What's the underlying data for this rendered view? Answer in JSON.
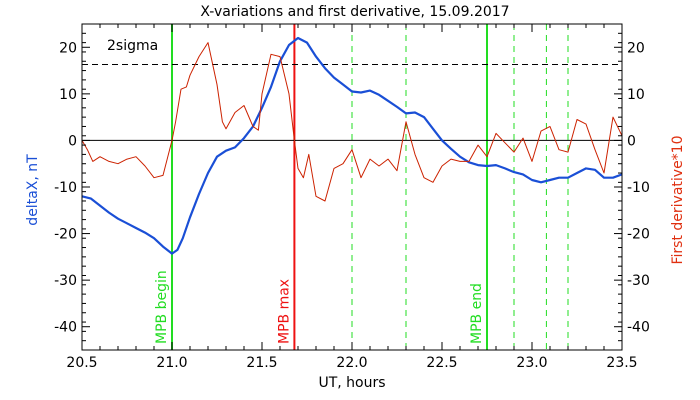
{
  "chart_data": {
    "type": "line",
    "title": "X-variations and first derivative, 15.09.2017",
    "xlabel": "UT, hours",
    "ylabel_left": "deltaX, nT",
    "ylabel_right": "First derivative*10",
    "xlim": [
      20.5,
      23.5
    ],
    "ylim": [
      -45,
      25
    ],
    "x_ticks": [
      20.5,
      21.0,
      21.5,
      22.0,
      22.5,
      23.0,
      23.5
    ],
    "x_tick_labels": [
      "20.5",
      "21.0",
      "21.5",
      "22.0",
      "22.5",
      "23.0",
      "23.5"
    ],
    "y_ticks": [
      -40,
      -30,
      -20,
      -10,
      0,
      10,
      20
    ],
    "y_tick_labels": [
      "-40",
      "-30",
      "-20",
      "-10",
      "0",
      "10",
      "20"
    ],
    "threshold": {
      "label": "2sigma",
      "value": 16.3
    },
    "zero_line": 0,
    "colors": {
      "deltax": "#1a4fd6",
      "derivative": "#cc2200",
      "mpb_edge": "#22dd22",
      "mpb_max": "#ee1111",
      "dashed_markers": "#22dd22",
      "right_axis_label": "#e03010",
      "left_axis_label": "#1a4fd6"
    },
    "vertical_markers": [
      {
        "x": 21.0,
        "label": "MPB begin",
        "kind": "mpb_edge"
      },
      {
        "x": 21.68,
        "label": "MPB max",
        "kind": "mpb_max"
      },
      {
        "x": 22.75,
        "label": "MPB end",
        "kind": "mpb_edge"
      }
    ],
    "dashed_markers_x": [
      22.0,
      22.3,
      22.9,
      23.08,
      23.2
    ],
    "series": [
      {
        "key": "deltax",
        "x": [
          20.5,
          20.55,
          20.6,
          20.65,
          20.7,
          20.75,
          20.8,
          20.85,
          20.9,
          20.95,
          21.0,
          21.03,
          21.06,
          21.1,
          21.15,
          21.2,
          21.25,
          21.3,
          21.35,
          21.4,
          21.45,
          21.5,
          21.55,
          21.6,
          21.65,
          21.7,
          21.75,
          21.8,
          21.85,
          21.9,
          21.95,
          22.0,
          22.05,
          22.1,
          22.15,
          22.2,
          22.25,
          22.3,
          22.35,
          22.4,
          22.45,
          22.5,
          22.55,
          22.6,
          22.65,
          22.7,
          22.75,
          22.8,
          22.85,
          22.9,
          22.95,
          23.0,
          23.05,
          23.1,
          23.15,
          23.2,
          23.25,
          23.3,
          23.35,
          23.4,
          23.45,
          23.5
        ],
        "y": [
          -12,
          -12.5,
          -14,
          -15.5,
          -16.8,
          -17.8,
          -18.8,
          -19.8,
          -21,
          -22.8,
          -24.3,
          -23.5,
          -21,
          -16.5,
          -11.5,
          -7,
          -3.5,
          -2.2,
          -1.5,
          0.5,
          3,
          7,
          11.5,
          17,
          20.5,
          22,
          21,
          18,
          15.5,
          13.5,
          12,
          10.5,
          10.3,
          10.7,
          9.8,
          8.5,
          7.2,
          5.8,
          6,
          5,
          2.5,
          0,
          -1.8,
          -3.5,
          -4.7,
          -5.3,
          -5.5,
          -5.3,
          -6,
          -6.8,
          -7.3,
          -8.5,
          -9,
          -8.5,
          -8,
          -8,
          -7,
          -6,
          -6.3,
          -8,
          -8,
          -7.3
        ]
      },
      {
        "key": "derivative",
        "x": [
          20.5,
          20.53,
          20.56,
          20.6,
          20.65,
          20.7,
          20.75,
          20.8,
          20.85,
          20.9,
          20.95,
          21.0,
          21.02,
          21.05,
          21.08,
          21.1,
          21.15,
          21.2,
          21.25,
          21.28,
          21.3,
          21.35,
          21.4,
          21.45,
          21.48,
          21.5,
          21.55,
          21.6,
          21.65,
          21.68,
          21.7,
          21.73,
          21.76,
          21.8,
          21.85,
          21.9,
          21.95,
          22.0,
          22.05,
          22.1,
          22.15,
          22.2,
          22.25,
          22.3,
          22.35,
          22.4,
          22.45,
          22.5,
          22.55,
          22.6,
          22.65,
          22.7,
          22.75,
          22.8,
          22.85,
          22.9,
          22.95,
          23.0,
          23.05,
          23.1,
          23.15,
          23.2,
          23.25,
          23.3,
          23.35,
          23.4,
          23.45,
          23.5
        ],
        "y": [
          0,
          -2,
          -4.5,
          -3.5,
          -4.5,
          -5,
          -4,
          -3.5,
          -5.5,
          -8,
          -7.5,
          0,
          4,
          11,
          11.5,
          14,
          18,
          21,
          12,
          4,
          2.5,
          6,
          7.5,
          3,
          2.2,
          10,
          18.5,
          18,
          10,
          0,
          -6,
          -8,
          -3,
          -12,
          -13,
          -6,
          -5,
          -2,
          -8,
          -4,
          -5.5,
          -4,
          -6.5,
          4,
          -3,
          -8,
          -9,
          -5.5,
          -4,
          -4.5,
          -4.5,
          -1,
          -3.5,
          1.5,
          -0.5,
          -2.5,
          0.5,
          -4.5,
          2,
          3,
          -2,
          -2.5,
          4.5,
          3.5,
          -2,
          -7,
          5,
          1
        ]
      }
    ]
  }
}
